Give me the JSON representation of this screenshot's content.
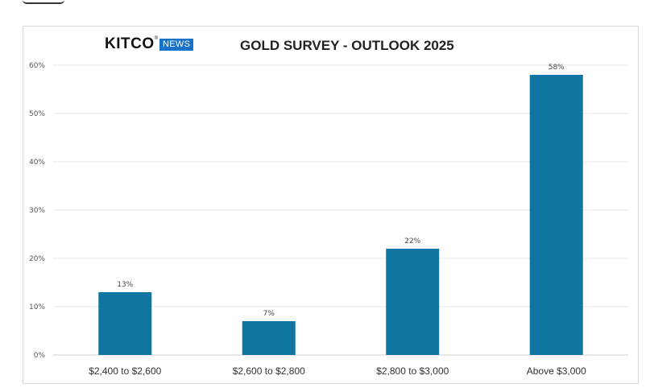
{
  "brand": {
    "name": "KITCO",
    "registered_mark": "®",
    "tag": "NEWS"
  },
  "chart_data": {
    "type": "bar",
    "title": "GOLD SURVEY - OUTLOOK 2025",
    "xlabel": "",
    "ylabel": "",
    "categories": [
      "$2,400 to $2,600",
      "$2,600 to $2,800",
      "$2,800 to $3,000",
      "Above $3,000"
    ],
    "values": [
      13,
      7,
      22,
      58
    ],
    "data_labels": [
      "13%",
      "7%",
      "22%",
      "58%"
    ],
    "yticks": [
      0,
      10,
      20,
      30,
      40,
      50,
      60
    ],
    "ytick_labels": [
      "0%",
      "10%",
      "20%",
      "30%",
      "40%",
      "50%",
      "60%"
    ],
    "ylim": [
      0,
      60
    ],
    "grid": true,
    "legend": "none",
    "bar_color": "#0e76a0"
  }
}
